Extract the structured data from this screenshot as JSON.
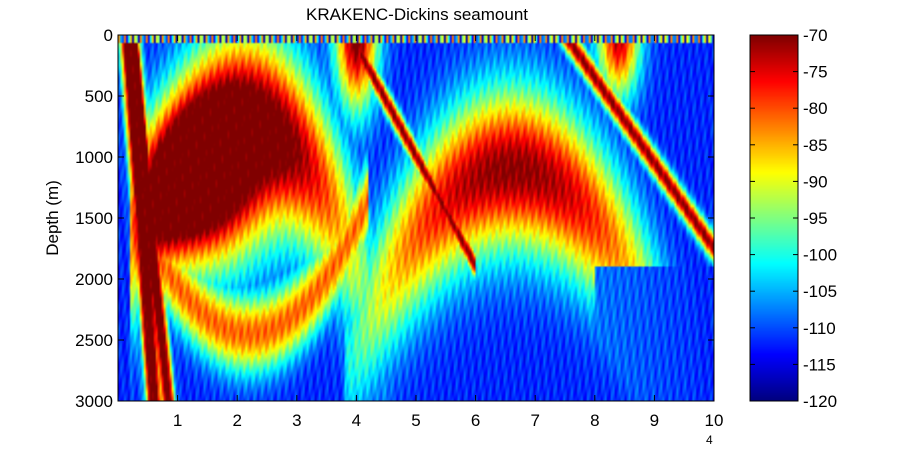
{
  "chart_data": {
    "type": "heatmap",
    "title": "KRAKENC-Dickins seamount",
    "xlabel": "",
    "ylabel": "Depth (m)",
    "x_exponent_label": "4",
    "x_ticks": [
      1,
      2,
      3,
      4,
      5,
      6,
      7,
      8,
      9,
      10
    ],
    "x_tick_labels": [
      "1",
      "2",
      "3",
      "4",
      "5",
      "6",
      "7",
      "8",
      "9",
      "10"
    ],
    "xlim": [
      0,
      10
    ],
    "y_ticks": [
      0,
      500,
      1000,
      1500,
      2000,
      2500,
      3000
    ],
    "y_tick_labels": [
      "0",
      "500",
      "1000",
      "1500",
      "2000",
      "2500",
      "3000"
    ],
    "ylim": [
      0,
      3000
    ],
    "y_reversed": true,
    "colormap": "jet",
    "colorbar": {
      "ticks": [
        -70,
        -75,
        -80,
        -85,
        -90,
        -95,
        -100,
        -105,
        -110,
        -115,
        -120
      ],
      "tick_labels": [
        "-70",
        "-75",
        "-80",
        "-85",
        "-90",
        "-95",
        "-100",
        "-105",
        "-110",
        "-115",
        "-120"
      ],
      "clim": [
        -120,
        -70
      ]
    },
    "colors": {
      "frame": "#000000",
      "jet_low": "#00008f",
      "jet_high": "#800000"
    }
  }
}
